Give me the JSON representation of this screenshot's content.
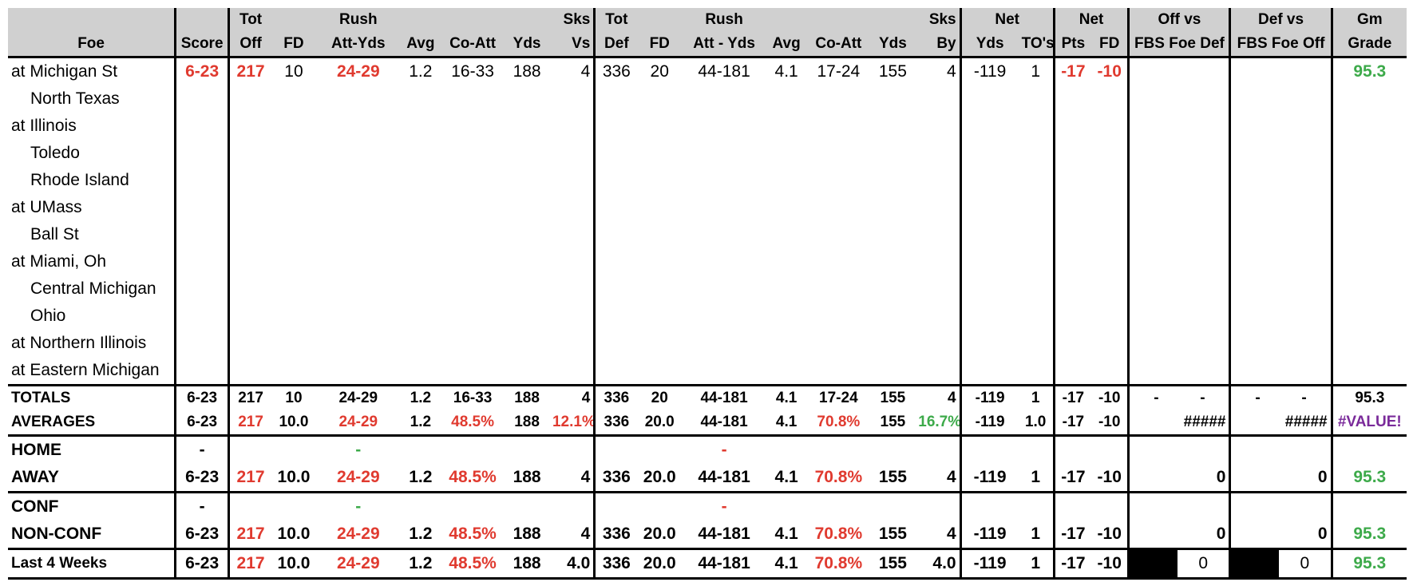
{
  "header": {
    "row1": {
      "tot_off": "Tot",
      "rush_off": "Rush",
      "sks_vs": "Sks",
      "tot_def": "Tot",
      "rush_def": "Rush",
      "sks_by": "Sks",
      "net_yds": "Net",
      "net_pts": "Net",
      "off_vs": "Off vs",
      "def_vs": "Def vs",
      "gm": "Gm"
    },
    "row2": {
      "foe": "Foe",
      "score": "Score",
      "off": "Off",
      "fd": "FD",
      "att_yds": "Att-Yds",
      "avg": "Avg",
      "co_att": "Co-Att",
      "yds": "Yds",
      "vs": "Vs",
      "def": "Def",
      "fd2": "FD",
      "att_yds2": "Att - Yds",
      "avg2": "Avg",
      "co_att2": "Co-Att",
      "yds2": "Yds",
      "by": "By",
      "yds3": "Yds",
      "tos": "TO's",
      "pts": "Pts",
      "fd3": "FD",
      "fbs_def": "FBS Foe Def",
      "fbs_off": "FBS Foe Off",
      "grade": "Grade"
    }
  },
  "games": [
    {
      "foe": "at Michigan St",
      "score": "6-23",
      "off": "217",
      "fd": "10",
      "att_yds": "24-29",
      "avg": "1.2",
      "co_att": "16-33",
      "yds": "188",
      "sks_vs": "4",
      "def": "336",
      "fd2": "20",
      "att_yds2": "44-181",
      "avg2": "4.1",
      "co_att2": "17-24",
      "yds2": "155",
      "sks_by": "4",
      "net_yds": "-119",
      "tos": "1",
      "pts": "-17",
      "fd3": "-10",
      "grade": "95.3"
    },
    {
      "foe": "North Texas"
    },
    {
      "foe": "at Illinois"
    },
    {
      "foe": "Toledo"
    },
    {
      "foe": "Rhode Island"
    },
    {
      "foe": "at UMass"
    },
    {
      "foe": "Ball St"
    },
    {
      "foe": "at Miami, Oh"
    },
    {
      "foe": "Central Michigan"
    },
    {
      "foe": "Ohio"
    },
    {
      "foe": "at Northern Illinois"
    },
    {
      "foe": "at Eastern Michigan"
    }
  ],
  "totals": {
    "label": "TOTALS",
    "score": "6-23",
    "off": "217",
    "fd": "10",
    "att_yds": "24-29",
    "avg": "1.2",
    "co_att": "16-33",
    "yds": "188",
    "sks_vs": "4",
    "def": "336",
    "fd2": "20",
    "att_yds2": "44-181",
    "avg2": "4.1",
    "co_att2": "17-24",
    "yds2": "155",
    "sks_by": "4",
    "net_yds": "-119",
    "tos": "1",
    "pts": "-17",
    "fd3": "-10",
    "d1": "-",
    "d2": "-",
    "d3": "-",
    "d4": "-",
    "grade": "95.3"
  },
  "averages": {
    "label": "AVERAGES",
    "score": "6-23",
    "off": "217",
    "fd": "10.0",
    "att_yds": "24-29",
    "avg": "1.2",
    "co_att": "48.5%",
    "yds": "188",
    "sks_vs": "12.1%",
    "def": "336",
    "fd2": "20.0",
    "att_yds2": "44-181",
    "avg2": "4.1",
    "co_att2": "70.8%",
    "yds2": "155",
    "sks_by": "16.7%",
    "net_yds": "-119",
    "tos": "1.0",
    "pts": "-17",
    "fd3": "-10",
    "off_vs": "#####",
    "def_vs": "#####",
    "grade": "#VALUE!"
  },
  "home": {
    "label": "HOME",
    "score": "-",
    "att_yds": "-",
    "att_yds2": "-"
  },
  "away": {
    "label": "AWAY",
    "score": "6-23",
    "off": "217",
    "fd": "10.0",
    "att_yds": "24-29",
    "avg": "1.2",
    "co_att": "48.5%",
    "yds": "188",
    "sks_vs": "4",
    "def": "336",
    "fd2": "20.0",
    "att_yds2": "44-181",
    "avg2": "4.1",
    "co_att2": "70.8%",
    "yds2": "155",
    "sks_by": "4",
    "net_yds": "-119",
    "tos": "1",
    "pts": "-17",
    "fd3": "-10",
    "off_vs": "0",
    "def_vs": "0",
    "grade": "95.3"
  },
  "conf": {
    "label": "CONF",
    "score": "-",
    "att_yds": "-",
    "att_yds2": "-"
  },
  "nonconf": {
    "label": "NON-CONF",
    "score": "6-23",
    "off": "217",
    "fd": "10.0",
    "att_yds": "24-29",
    "avg": "1.2",
    "co_att": "48.5%",
    "yds": "188",
    "sks_vs": "4",
    "def": "336",
    "fd2": "20.0",
    "att_yds2": "44-181",
    "avg2": "4.1",
    "co_att2": "70.8%",
    "yds2": "155",
    "sks_by": "4",
    "net_yds": "-119",
    "tos": "1",
    "pts": "-17",
    "fd3": "-10",
    "off_vs": "0",
    "def_vs": "0",
    "grade": "95.3"
  },
  "last4": {
    "label": "Last 4 Weeks",
    "score": "6-23",
    "off": "217",
    "fd": "10.0",
    "att_yds": "24-29",
    "avg": "1.2",
    "co_att": "48.5%",
    "yds": "188",
    "sks_vs": "4.0",
    "def": "336",
    "fd2": "20.0",
    "att_yds2": "44-181",
    "avg2": "4.1",
    "co_att2": "70.8%",
    "yds2": "155",
    "sks_by": "4.0",
    "net_yds": "-119",
    "tos": "1",
    "pts": "-17",
    "fd3": "-10",
    "off_vs": "0",
    "def_vs": "0",
    "grade": "95.3"
  },
  "colors": {
    "red": "#e03a2f",
    "green": "#3daa4a",
    "purple": "#7a2a9a",
    "header_bg": "#d0d0d0"
  }
}
